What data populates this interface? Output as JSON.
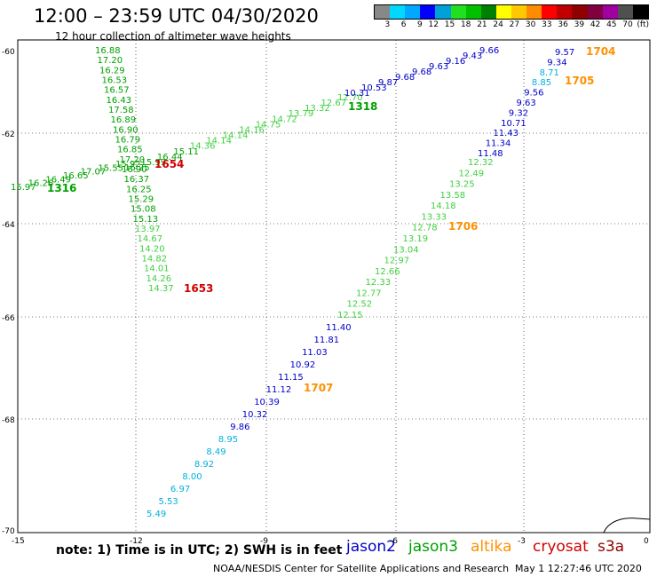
{
  "title": "12:00 – 23:59 UTC 04/30/2020",
  "subtitle": "12 hour collection of altimeter wave heights",
  "scale": {
    "colors": [
      "#888888",
      "#00d8ff",
      "#00a8ff",
      "#0000ff",
      "#00a0d8",
      "#20e020",
      "#00c000",
      "#008000",
      "#ffff00",
      "#ffc800",
      "#ff8c00",
      "#ff0000",
      "#c00000",
      "#900000",
      "#800040",
      "#a000a0",
      "#505050",
      "#000000"
    ],
    "labels": [
      "3",
      "6",
      "9",
      "12",
      "15",
      "18",
      "21",
      "24",
      "27",
      "30",
      "33",
      "36",
      "39",
      "42",
      "45",
      "70",
      "(ft)"
    ]
  },
  "axes": {
    "lat_labels": [
      "-60",
      "-62",
      "-64",
      "-66",
      "-68",
      "-70"
    ],
    "lon_labels": [
      "-15",
      "-12",
      "-9",
      "-6",
      "-3",
      "0"
    ]
  },
  "colors": {
    "jason2": "#0000c8",
    "jason3": "#00a000",
    "altika": "#ff9000",
    "cryosat": "#d00000",
    "s3a": "#900000",
    "light_green": "#40d040",
    "cyan": "#00b0e0"
  },
  "passes": {
    "p1316a": {
      "label": "1316",
      "color": "#00a000",
      "values": [
        "15.97",
        "16.26",
        "16.49",
        "16.65",
        "17.07",
        "15.55",
        "15.92"
      ]
    },
    "p1318": {
      "label": "1318",
      "color": "#00a000",
      "values": [
        "16.25",
        "15.99",
        "16.44",
        "15.11",
        "14.36",
        "14.14",
        "14.14",
        "14.16",
        "14.75",
        "14.72",
        "13.79",
        "13.32",
        "12.67",
        "12.70"
      ]
    },
    "p1318b": {
      "values": [
        "10.31",
        "10.53",
        "9.87",
        "9.68",
        "9.68",
        "9.63",
        "9.16",
        "9.43",
        "9.66"
      ]
    },
    "p1653": {
      "label": "1653",
      "color": "#d00000",
      "values": [
        "16.88",
        "17.20",
        "16.29",
        "16.53",
        "16.57",
        "16.43",
        "17.58",
        "16.89",
        "16.90",
        "16.79",
        "16.85",
        "17.20",
        "16.90",
        "16.37",
        "16.25",
        "15.29",
        "15.08",
        "15.13",
        "13.97",
        "14.67",
        "14.20",
        "14.82",
        "14.01",
        "14.26",
        "14.37"
      ]
    },
    "p1654": {
      "label": "1654",
      "color": "#d00000"
    },
    "p1704": {
      "label": "1704",
      "color": "#ff9000",
      "values": [
        "9.57",
        "9.34",
        "8.71",
        "8.85",
        "9.56",
        "9.63",
        "9.32",
        "10.71",
        "11.43",
        "11.34",
        "11.48"
      ]
    },
    "p1705": {
      "label": "1705",
      "color": "#ff9000"
    },
    "p1706": {
      "label": "1706",
      "color": "#ff9000",
      "values": [
        "12.32",
        "12.49",
        "13.25",
        "13.58",
        "14.18",
        "13.33",
        "12.78",
        "13.19",
        "13.04",
        "12.97",
        "12.66",
        "12.33",
        "12.77",
        "12.52",
        "12.15"
      ]
    },
    "p1707": {
      "label": "1707",
      "color": "#ff9000",
      "values": [
        "11.40",
        "11.81",
        "11.03",
        "10.92",
        "11.15",
        "11.12",
        "10.39",
        "10.32",
        "9.86",
        "8.95",
        "8.49",
        "8.92",
        "8.00",
        "6.97",
        "5.53",
        "5.49"
      ]
    }
  },
  "footer": {
    "note": "note:  1) Time is in UTC;  2) SWH is in feet",
    "sats": [
      {
        "name": "jason2",
        "color": "#0000c8"
      },
      {
        "name": "jason3",
        "color": "#00a000"
      },
      {
        "name": "altika",
        "color": "#ff9000"
      },
      {
        "name": "cryosat",
        "color": "#d00000"
      },
      {
        "name": "s3a",
        "color": "#900000"
      }
    ],
    "credit": "NOAA/NESDIS Center for Satellite Applications and Research",
    "timestamp": "May  1 12:27:46 UTC 2020"
  }
}
